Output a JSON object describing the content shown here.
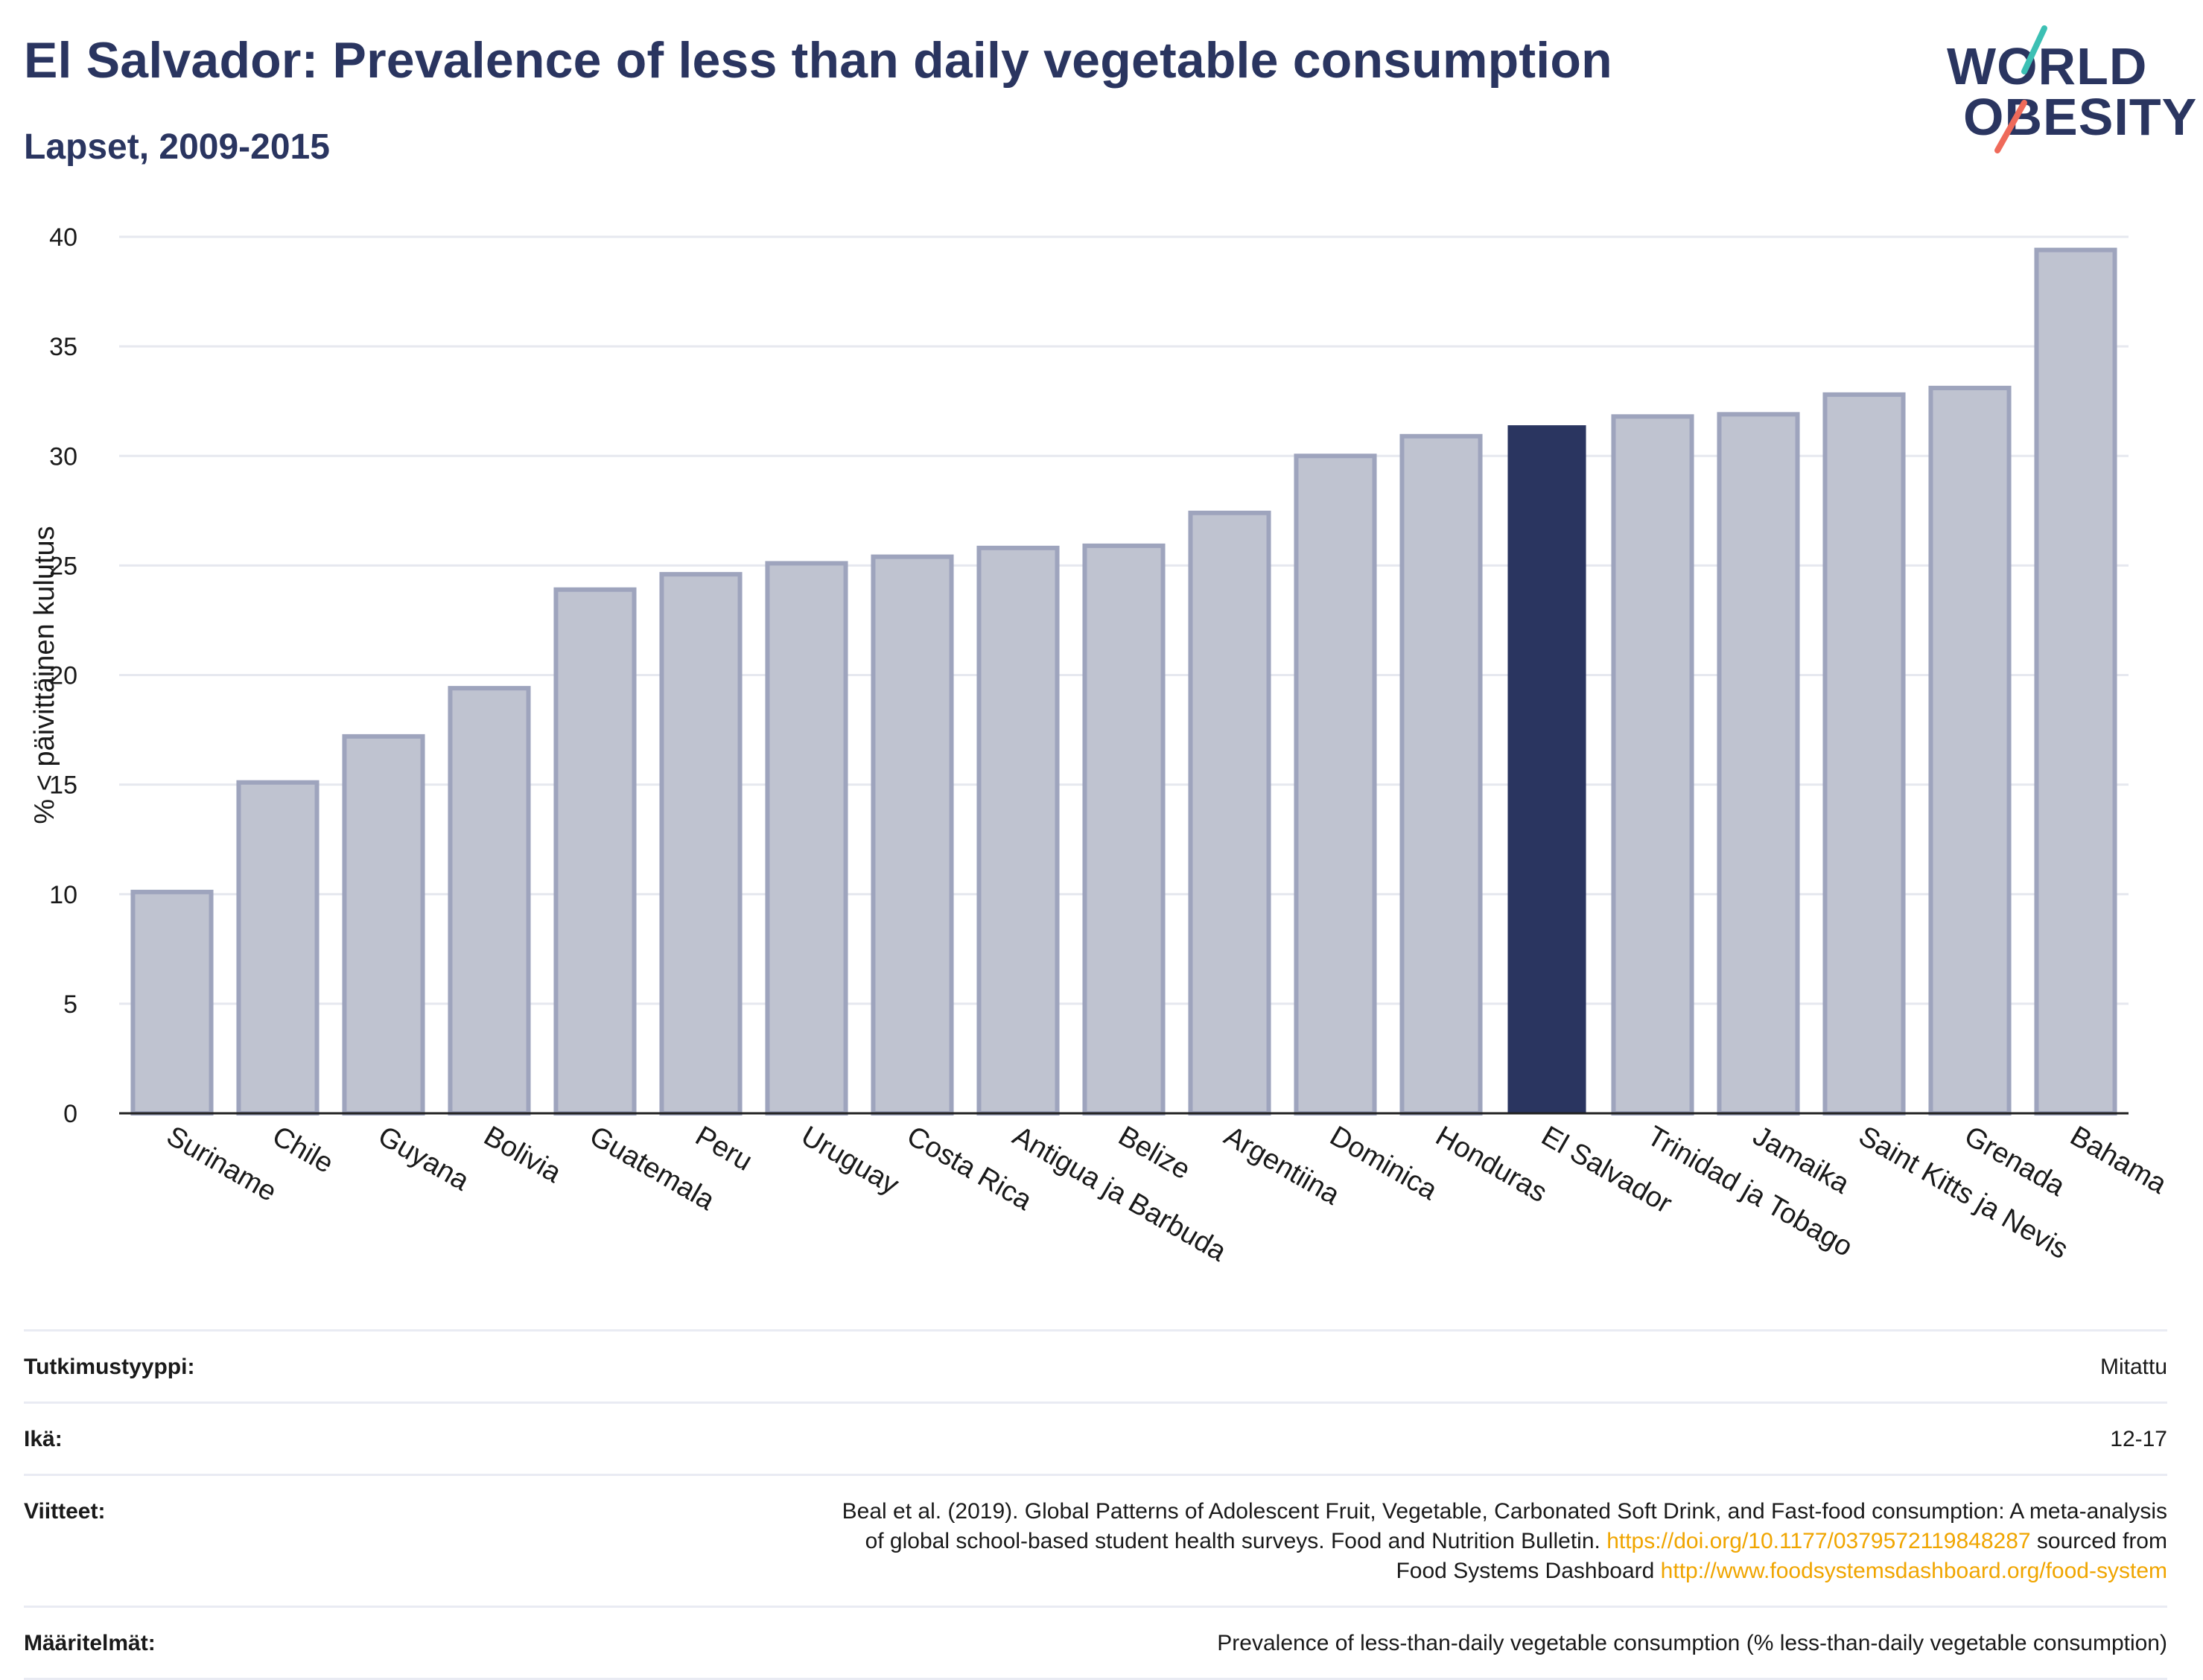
{
  "header": {
    "title": "El Salvador: Prevalence of less than daily vegetable consumption",
    "subtitle": "Lapset, 2009-2015"
  },
  "logo": {
    "line1": "WORLD",
    "line2": "OBESITY",
    "accent_teal": "#3cc0b4",
    "accent_red": "#ef6a5a"
  },
  "colors": {
    "bar_fill": "#bfc3d0",
    "bar_stroke": "#9ea4bd",
    "highlight_fill": "#2a3560",
    "grid": "#e6e8ef",
    "axis": "#222222"
  },
  "chart_data": {
    "type": "bar",
    "title": "",
    "xlabel": "",
    "ylabel": "% < päivittäinen kulutus",
    "ylim": [
      0,
      40
    ],
    "yticks": [
      0,
      5,
      10,
      15,
      20,
      25,
      30,
      35,
      40
    ],
    "grid": true,
    "categories": [
      "Suriname",
      "Chile",
      "Guyana",
      "Bolivia",
      "Guatemala",
      "Peru",
      "Uruguay",
      "Costa Rica",
      "Antigua ja Barbuda",
      "Belize",
      "Argentiina",
      "Dominica",
      "Honduras",
      "El Salvador",
      "Trinidad ja Tobago",
      "Jamaika",
      "Saint Kitts ja Nevis",
      "Grenada",
      "Bahama"
    ],
    "values": [
      10.1,
      15.1,
      17.2,
      19.4,
      23.9,
      24.6,
      25.1,
      25.4,
      25.8,
      25.9,
      27.4,
      30.0,
      30.9,
      31.4,
      31.8,
      31.9,
      32.8,
      33.1,
      39.4
    ],
    "highlight": "El Salvador"
  },
  "meta": {
    "rows": [
      {
        "label": "Tutkimustyyppi:",
        "value": "Mitattu"
      },
      {
        "label": "Ikä:",
        "value": "12-17"
      },
      {
        "label": "Viitteet:",
        "value_lines": [
          "Beal et al. (2019). Global Patterns of Adolescent Fruit, Vegetable, Carbonated Soft Drink, and Fast-food consumption: A meta-analysis",
          "of global school-based student health surveys. Food and Nutrition Bulletin."
        ],
        "doi_link": "https://doi.org/10.1177/0379572119848287",
        "sourced_from": "sourced from",
        "source_name": "Food Systems Dashboard",
        "source_link": "http://www.foodsystemsdashboard.org/food-system"
      },
      {
        "label": "Määritelmät:",
        "value": "Prevalence of less-than-daily vegetable consumption (% less-than-daily vegetable consumption)"
      }
    ]
  }
}
